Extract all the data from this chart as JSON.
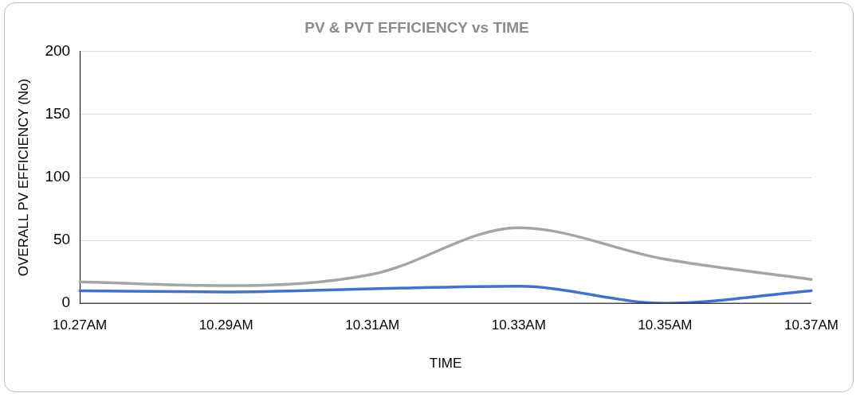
{
  "chart_data": {
    "type": "line",
    "title": "PV & PVT EFFICIENCY vs TIME",
    "xlabel": "TIME",
    "ylabel": "OVERALL PV EFFICIENCY (No)",
    "categories": [
      "10.27AM",
      "10.29AM",
      "10.31AM",
      "10.33AM",
      "10.35AM",
      "10.37AM"
    ],
    "series": [
      {
        "color": "#4472c4",
        "values": [
          10,
          9,
          11.5,
          13.5,
          0,
          10
        ]
      },
      {
        "color": "#a5a5a5",
        "values": [
          17,
          14,
          23,
          60,
          35,
          19
        ]
      }
    ],
    "ylim": [
      0,
      200
    ],
    "yticks": [
      0,
      50,
      100,
      150,
      200
    ],
    "grid": "y",
    "legend": false,
    "marker": "none"
  }
}
